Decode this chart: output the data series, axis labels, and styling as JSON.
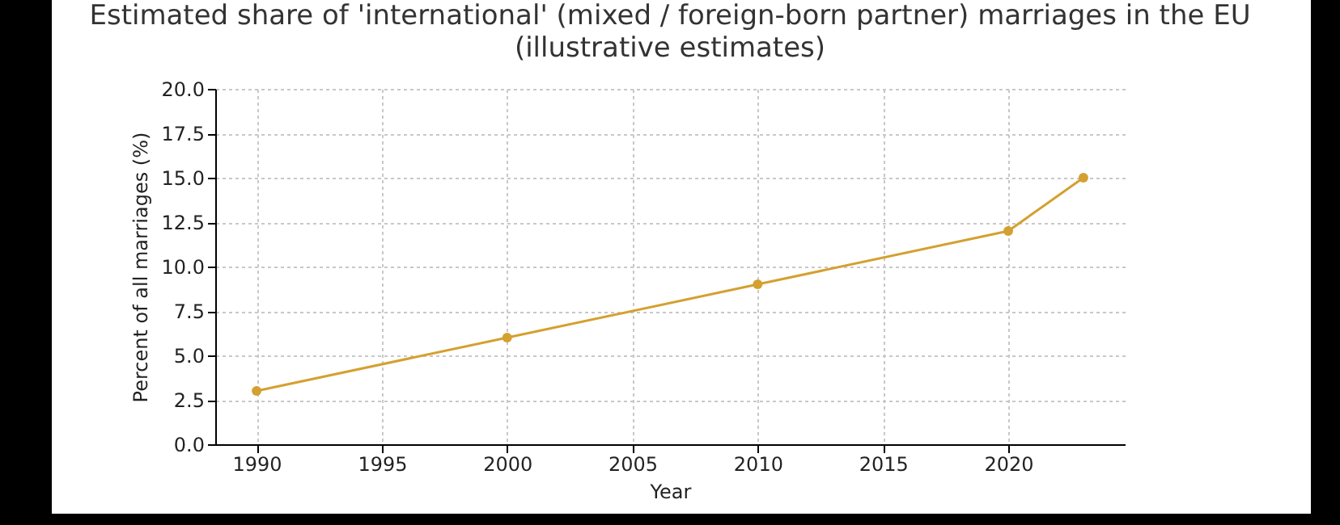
{
  "chart_data": {
    "type": "line",
    "title": "Estimated share of 'international' (mixed / foreign-born partner) marriages in the EU\n(illustrative estimates)",
    "xlabel": "Year",
    "ylabel": "Percent of all marriages (%)",
    "x": [
      1990,
      2000,
      2010,
      2020,
      2023
    ],
    "series": [
      {
        "color": "#d4a030",
        "values": [
          3,
          6,
          9,
          12,
          15
        ]
      }
    ],
    "xlim": [
      1988.35,
      2024.65
    ],
    "xticks": [
      1990,
      1995,
      2000,
      2005,
      2010,
      2015,
      2020
    ],
    "ylim": [
      0,
      20
    ],
    "yticks": [
      {
        "value": 0,
        "label": "0.0"
      },
      2.5,
      {
        "value": 5,
        "label": "5.0"
      },
      7.5,
      {
        "value": 10,
        "label": "10.0"
      },
      12.5,
      {
        "value": 15,
        "label": "15.0"
      },
      17.5,
      {
        "value": 20,
        "label": "20.0"
      }
    ],
    "grid": true,
    "marker": "circle",
    "line_style": "solid"
  }
}
